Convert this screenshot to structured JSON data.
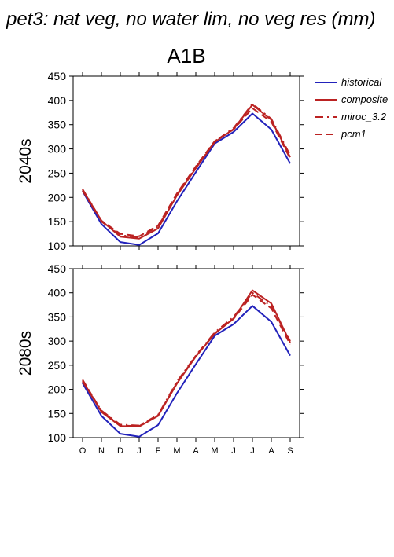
{
  "title": "pet3: nat veg, no water lim, no veg res (mm)",
  "scenario": "A1B",
  "colors": {
    "historical": "#2222bb",
    "future": "#bb2222",
    "axis": "#000000"
  },
  "chart_data": [
    {
      "type": "line",
      "row_label": "2040s",
      "categories": [
        "O",
        "N",
        "D",
        "J",
        "F",
        "M",
        "A",
        "M",
        "J",
        "J",
        "A",
        "S"
      ],
      "ylim": [
        100,
        450
      ],
      "yticks": [
        100,
        150,
        200,
        250,
        300,
        350,
        400,
        450
      ],
      "legend_position": "right",
      "series": [
        {
          "name": "historical",
          "style": "solid",
          "values": [
            213,
            145,
            108,
            102,
            126,
            192,
            252,
            311,
            335,
            373,
            340,
            270
          ]
        },
        {
          "name": "composite",
          "style": "solid",
          "values": [
            216,
            152,
            119,
            115,
            136,
            204,
            260,
            314,
            341,
            391,
            360,
            283
          ]
        },
        {
          "name": "miroc_3.2",
          "style": "dashdot",
          "values": [
            214,
            150,
            122,
            118,
            140,
            206,
            262,
            315,
            343,
            393,
            362,
            287
          ]
        },
        {
          "name": "pcm1",
          "style": "dashed",
          "values": [
            217,
            152,
            125,
            120,
            142,
            208,
            264,
            316,
            340,
            384,
            356,
            280
          ]
        }
      ]
    },
    {
      "type": "line",
      "row_label": "2080s",
      "categories": [
        "O",
        "N",
        "D",
        "J",
        "F",
        "M",
        "A",
        "M",
        "J",
        "J",
        "A",
        "S"
      ],
      "ylim": [
        100,
        450
      ],
      "yticks": [
        100,
        150,
        200,
        250,
        300,
        350,
        400,
        450
      ],
      "series": [
        {
          "name": "historical",
          "style": "solid",
          "values": [
            213,
            145,
            108,
            102,
            126,
            192,
            252,
            311,
            335,
            373,
            340,
            270
          ]
        },
        {
          "name": "composite",
          "style": "solid",
          "values": [
            218,
            153,
            124,
            123,
            145,
            212,
            268,
            315,
            347,
            405,
            378,
            297
          ]
        },
        {
          "name": "miroc_3.2",
          "style": "dashdot",
          "values": [
            216,
            156,
            127,
            125,
            147,
            216,
            270,
            318,
            350,
            400,
            372,
            300
          ]
        },
        {
          "name": "pcm1",
          "style": "dashed",
          "values": [
            220,
            155,
            125,
            124,
            146,
            214,
            269,
            316,
            346,
            396,
            368,
            293
          ]
        }
      ]
    }
  ]
}
